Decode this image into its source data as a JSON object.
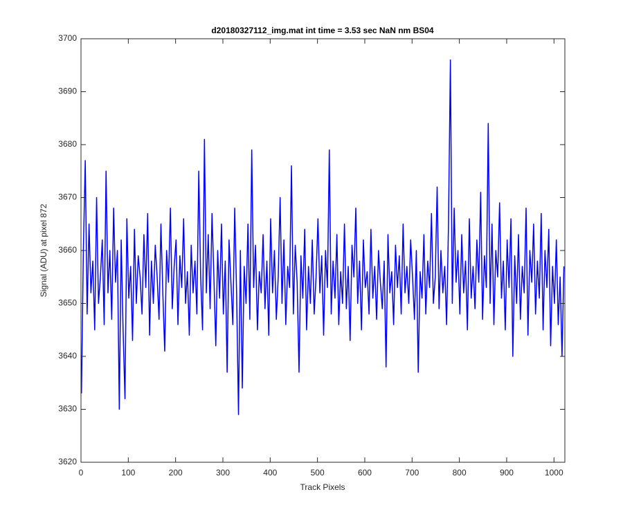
{
  "chart_data": {
    "type": "line",
    "title": "d20180327112_img.mat int time = 3.53 sec  NaN nm BS04",
    "x_label": "Track Pixels",
    "y_label": "Signal (ADU) at pixel 872",
    "xlim": [
      0,
      1023
    ],
    "ylim": [
      3620,
      3700
    ],
    "xticks": [
      0,
      100,
      200,
      300,
      400,
      500,
      600,
      700,
      800,
      900,
      1000
    ],
    "yticks": [
      3620,
      3630,
      3640,
      3650,
      3660,
      3670,
      3680,
      3690,
      3700
    ],
    "grid": false,
    "x": [
      1,
      5,
      9,
      13,
      17,
      21,
      25,
      29,
      33,
      37,
      41,
      45,
      49,
      53,
      57,
      61,
      65,
      69,
      73,
      77,
      81,
      85,
      89,
      93,
      97,
      101,
      105,
      109,
      113,
      117,
      121,
      125,
      129,
      133,
      137,
      141,
      145,
      149,
      153,
      157,
      161,
      165,
      169,
      173,
      177,
      181,
      185,
      189,
      193,
      197,
      201,
      205,
      209,
      213,
      217,
      221,
      225,
      229,
      233,
      237,
      241,
      245,
      249,
      253,
      257,
      261,
      265,
      269,
      273,
      277,
      281,
      285,
      289,
      293,
      297,
      301,
      305,
      309,
      313,
      317,
      321,
      325,
      329,
      333,
      337,
      341,
      345,
      349,
      353,
      357,
      361,
      365,
      369,
      373,
      377,
      381,
      385,
      389,
      393,
      397,
      401,
      405,
      409,
      413,
      417,
      421,
      425,
      429,
      433,
      437,
      441,
      445,
      449,
      453,
      457,
      461,
      465,
      469,
      473,
      477,
      481,
      485,
      489,
      493,
      497,
      501,
      505,
      509,
      513,
      517,
      521,
      525,
      529,
      533,
      537,
      541,
      545,
      549,
      553,
      557,
      561,
      565,
      569,
      573,
      577,
      581,
      585,
      589,
      593,
      597,
      601,
      605,
      609,
      613,
      617,
      621,
      625,
      629,
      633,
      637,
      641,
      645,
      649,
      653,
      657,
      661,
      665,
      669,
      673,
      677,
      681,
      685,
      689,
      693,
      697,
      701,
      705,
      709,
      713,
      717,
      721,
      725,
      729,
      733,
      737,
      741,
      745,
      749,
      753,
      757,
      761,
      765,
      769,
      773,
      777,
      781,
      785,
      789,
      793,
      797,
      801,
      805,
      809,
      813,
      817,
      821,
      825,
      829,
      833,
      837,
      841,
      845,
      849,
      853,
      857,
      861,
      865,
      869,
      873,
      877,
      881,
      885,
      889,
      893,
      897,
      901,
      905,
      909,
      913,
      917,
      921,
      925,
      929,
      933,
      937,
      941,
      945,
      949,
      953,
      957,
      961,
      965,
      969,
      973,
      977,
      981,
      985,
      989,
      993,
      997,
      1001,
      1005,
      1009,
      1013,
      1017,
      1021
    ],
    "series": [
      {
        "name": "signal",
        "color": "#0000ff",
        "values": [
          3633,
          3660,
          3677,
          3648,
          3665,
          3652,
          3658,
          3645,
          3670,
          3650,
          3655,
          3662,
          3646,
          3675,
          3652,
          3660,
          3647,
          3668,
          3654,
          3660,
          3630,
          3662,
          3645,
          3632,
          3666,
          3651,
          3657,
          3643,
          3664,
          3650,
          3659,
          3655,
          3648,
          3663,
          3653,
          3667,
          3644,
          3658,
          3650,
          3661,
          3655,
          3647,
          3665,
          3652,
          3641,
          3660,
          3654,
          3668,
          3649,
          3657,
          3662,
          3646,
          3659,
          3653,
          3666,
          3650,
          3656,
          3644,
          3661,
          3652,
          3658,
          3648,
          3675,
          3655,
          3645,
          3681,
          3652,
          3663,
          3649,
          3667,
          3655,
          3642,
          3660,
          3651,
          3665,
          3648,
          3658,
          3637,
          3662,
          3654,
          3646,
          3668,
          3652,
          3629,
          3660,
          3634,
          3657,
          3650,
          3665,
          3647,
          3679,
          3653,
          3661,
          3645,
          3656,
          3652,
          3663,
          3649,
          3658,
          3644,
          3666,
          3652,
          3660,
          3647,
          3655,
          3670,
          3650,
          3662,
          3646,
          3657,
          3653,
          3676,
          3648,
          3661,
          3654,
          3637,
          3659,
          3651,
          3664,
          3645,
          3657,
          3650,
          3662,
          3648,
          3655,
          3666,
          3652,
          3659,
          3644,
          3660,
          3653,
          3679,
          3648,
          3658,
          3651,
          3663,
          3646,
          3656,
          3650,
          3665,
          3649,
          3657,
          3643,
          3661,
          3655,
          3668,
          3650,
          3658,
          3645,
          3662,
          3653,
          3656,
          3648,
          3664,
          3651,
          3657,
          3647,
          3660,
          3654,
          3649,
          3658,
          3638,
          3663,
          3652,
          3656,
          3646,
          3661,
          3653,
          3659,
          3648,
          3665,
          3652,
          3657,
          3650,
          3662,
          3655,
          3647,
          3660,
          3637,
          3656,
          3651,
          3663,
          3648,
          3658,
          3653,
          3667,
          3650,
          3655,
          3672,
          3649,
          3660,
          3652,
          3657,
          3646,
          3665,
          3696,
          3650,
          3668,
          3654,
          3660,
          3648,
          3663,
          3652,
          3658,
          3645,
          3666,
          3651,
          3657,
          3649,
          3662,
          3654,
          3671,
          3647,
          3659,
          3653,
          3684,
          3650,
          3665,
          3646,
          3660,
          3655,
          3669,
          3651,
          3658,
          3645,
          3662,
          3653,
          3666,
          3640,
          3659,
          3650,
          3663,
          3647,
          3657,
          3652,
          3668,
          3644,
          3660,
          3654,
          3665,
          3648,
          3658,
          3651,
          3667,
          3645,
          3660,
          3653,
          3664,
          3642,
          3657,
          3650,
          3662,
          3646,
          3655,
          3640,
          3657
        ]
      }
    ]
  }
}
